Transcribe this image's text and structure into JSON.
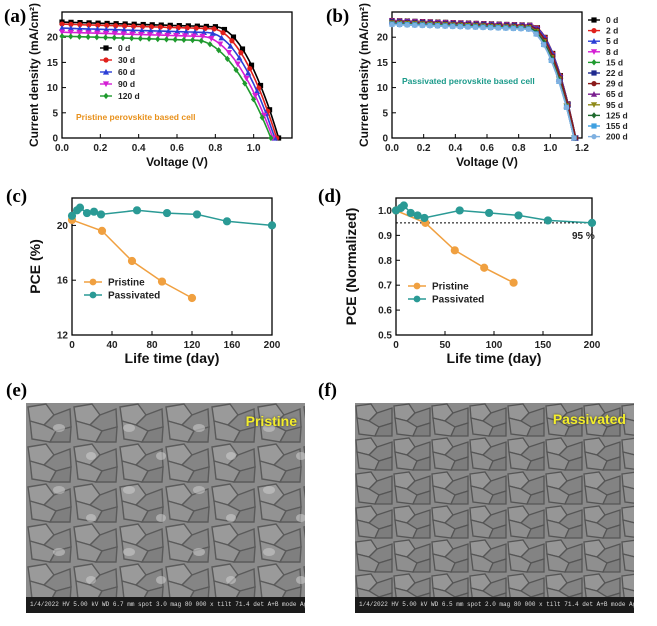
{
  "panels": {
    "a": {
      "label": "(a)"
    },
    "b": {
      "label": "(b)"
    },
    "c": {
      "label": "(c)"
    },
    "d": {
      "label": "(d)"
    },
    "e": {
      "label": "(e)"
    },
    "f": {
      "label": "(f)"
    }
  },
  "chart_data": [
    {
      "id": "a",
      "type": "line",
      "xlabel": "Voltage (V)",
      "ylabel": "Current density (mA/cm²)",
      "xlim": [
        0,
        1.2
      ],
      "ylim": [
        0,
        25
      ],
      "xticks": [
        0.0,
        0.2,
        0.4,
        0.6,
        0.8,
        1.0
      ],
      "yticks": [
        0,
        5,
        10,
        15,
        20
      ],
      "annotation": {
        "text": "Pristine perovskite based cell",
        "color": "#e8901a"
      },
      "legend": "top-left",
      "series": [
        {
          "name": "0 d",
          "color": "#000000",
          "jsc": 23.0,
          "voc": 1.13,
          "knee": 0.8
        },
        {
          "name": "30 d",
          "color": "#e0201c",
          "jsc": 22.6,
          "voc": 1.12,
          "knee": 0.78
        },
        {
          "name": "60 d",
          "color": "#2b3fd6",
          "jsc": 21.8,
          "voc": 1.11,
          "knee": 0.76
        },
        {
          "name": "90 d",
          "color": "#d41fd4",
          "jsc": 21.0,
          "voc": 1.1,
          "knee": 0.73
        },
        {
          "name": "120 d",
          "color": "#1f9a2e",
          "jsc": 20.2,
          "voc": 1.09,
          "knee": 0.7
        }
      ]
    },
    {
      "id": "b",
      "type": "line",
      "xlabel": "Voltage (V)",
      "ylabel": "Current density (mA/cm²)",
      "xlim": [
        0,
        1.2
      ],
      "ylim": [
        0,
        25
      ],
      "xticks": [
        0.0,
        0.2,
        0.4,
        0.6,
        0.8,
        1.0,
        1.2
      ],
      "yticks": [
        0,
        5,
        10,
        15,
        20
      ],
      "annotation": {
        "text": "Passivated perovskite based cell",
        "color": "#1a9a8a"
      },
      "legend": "right",
      "series": [
        {
          "name": "0 d",
          "color": "#000000",
          "jsc": 23.3,
          "voc": 1.16,
          "knee": 0.88
        },
        {
          "name": "2 d",
          "color": "#e0201c",
          "jsc": 23.3,
          "voc": 1.16,
          "knee": 0.88
        },
        {
          "name": "5 d",
          "color": "#2b3fd6",
          "jsc": 23.2,
          "voc": 1.16,
          "knee": 0.88
        },
        {
          "name": "8 d",
          "color": "#d41fd4",
          "jsc": 23.2,
          "voc": 1.16,
          "knee": 0.87
        },
        {
          "name": "15 d",
          "color": "#1f9a2e",
          "jsc": 23.1,
          "voc": 1.16,
          "knee": 0.87
        },
        {
          "name": "22 d",
          "color": "#1f2a8f",
          "jsc": 23.1,
          "voc": 1.16,
          "knee": 0.87
        },
        {
          "name": "29 d",
          "color": "#8b1a1a",
          "jsc": 23.0,
          "voc": 1.16,
          "knee": 0.87
        },
        {
          "name": "65 d",
          "color": "#7a1f8f",
          "jsc": 22.9,
          "voc": 1.15,
          "knee": 0.86
        },
        {
          "name": "95 d",
          "color": "#8f8a1a",
          "jsc": 22.8,
          "voc": 1.15,
          "knee": 0.86
        },
        {
          "name": "125 d",
          "color": "#1f6a2e",
          "jsc": 22.7,
          "voc": 1.15,
          "knee": 0.86
        },
        {
          "name": "155 d",
          "color": "#3fa0e0",
          "jsc": 22.6,
          "voc": 1.15,
          "knee": 0.85
        },
        {
          "name": "200 d",
          "color": "#7fb0e0",
          "jsc": 22.5,
          "voc": 1.15,
          "knee": 0.85
        }
      ]
    },
    {
      "id": "c",
      "type": "line",
      "xlabel": "Life time (day)",
      "ylabel": "PCE (%)",
      "xlim": [
        0,
        200
      ],
      "ylim": [
        12,
        22
      ],
      "xticks": [
        0,
        40,
        80,
        120,
        160,
        200
      ],
      "yticks": [
        12,
        16,
        20
      ],
      "legend": "bottom-left",
      "series": [
        {
          "name": "Pristine",
          "color": "#f0a040",
          "x": [
            0,
            30,
            60,
            90,
            120
          ],
          "y": [
            20.4,
            19.6,
            17.4,
            15.9,
            14.7
          ]
        },
        {
          "name": "Passivated",
          "color": "#2a9a95",
          "x": [
            0,
            5,
            8,
            15,
            22,
            29,
            65,
            95,
            125,
            155,
            200
          ],
          "y": [
            20.7,
            21.1,
            21.3,
            20.9,
            21.0,
            20.8,
            21.1,
            20.9,
            20.8,
            20.3,
            20.0
          ]
        }
      ]
    },
    {
      "id": "d",
      "type": "line",
      "xlabel": "Life time (day)",
      "ylabel": "PCE (Normalized)",
      "xlim": [
        0,
        200
      ],
      "ylim": [
        0.5,
        1.05
      ],
      "xticks": [
        0,
        50,
        100,
        150,
        200
      ],
      "yticks": [
        0.5,
        0.6,
        0.7,
        0.8,
        0.9,
        1.0
      ],
      "reference_line": {
        "y": 0.95,
        "label": "95 %"
      },
      "legend": "bottom-left",
      "series": [
        {
          "name": "Pristine",
          "color": "#f0a040",
          "x": [
            0,
            30,
            60,
            90,
            120
          ],
          "y": [
            1.0,
            0.95,
            0.84,
            0.77,
            0.71
          ]
        },
        {
          "name": "Passivated",
          "color": "#2a9a95",
          "x": [
            0,
            5,
            8,
            15,
            22,
            29,
            65,
            95,
            125,
            155,
            200
          ],
          "y": [
            1.0,
            1.01,
            1.02,
            0.99,
            0.98,
            0.97,
            1.0,
            0.99,
            0.98,
            0.96,
            0.95
          ]
        }
      ]
    }
  ],
  "sem": {
    "e": {
      "tag": "Pristine",
      "bar": "1/4/2022  HV 5.00 kV  WD 6.7 mm  spot 3.0  mag 80 000 x  tilt 71.4  det A+B  mode  Agrazi  2 μm"
    },
    "f": {
      "tag": "Passivated",
      "bar": "1/4/2022  HV 5.00 kV  WD 6.5 mm  spot 2.0  mag 80 000 x  tilt 71.4  det A+B  mode  Agrazi  2 μm"
    }
  }
}
